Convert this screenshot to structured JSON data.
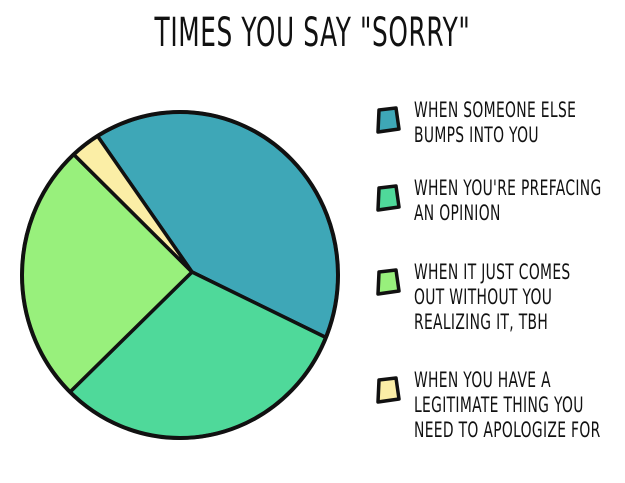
{
  "title": "TIMES YOU SAY \"SORRY\"",
  "colors": {
    "outline": "#111111",
    "teal": "#3ea7b7",
    "mint": "#4fd99a",
    "light_green": "#98f07c",
    "cream": "#fbeea6"
  },
  "chart_data": {
    "type": "pie",
    "title": "TIMES YOU SAY \"SORRY\"",
    "legend_position": "right",
    "series": [
      {
        "name": "WHEN SOMEONE ELSE BUMPS INTO YOU",
        "value": 40,
        "color": "#3ea7b7"
      },
      {
        "name": "WHEN YOU'RE PREFACING AN OPINION",
        "value": 31,
        "color": "#4fd99a"
      },
      {
        "name": "WHEN IT JUST COMES OUT WITHOUT YOU REALIZING IT, TBH",
        "value": 26,
        "color": "#98f07c"
      },
      {
        "name": "WHEN YOU HAVE A LEGITIMATE THING YOU NEED TO APOLOGIZE FOR",
        "value": 3,
        "color": "#fbeea6"
      }
    ]
  },
  "legend": [
    {
      "text": "WHEN SOMEONE ELSE\nBUMPS INTO YOU",
      "color": "#3ea7b7"
    },
    {
      "text": "WHEN YOU'RE PREFACING\nAN OPINION",
      "color": "#4fd99a"
    },
    {
      "text": "WHEN IT JUST COMES\nOUT WITHOUT YOU\nREALIZING IT, TBH",
      "color": "#98f07c"
    },
    {
      "text": "WHEN YOU HAVE A\nLEGITIMATE THING YOU\nNEED TO APOLOGIZE FOR",
      "color": "#fbeea6"
    }
  ]
}
